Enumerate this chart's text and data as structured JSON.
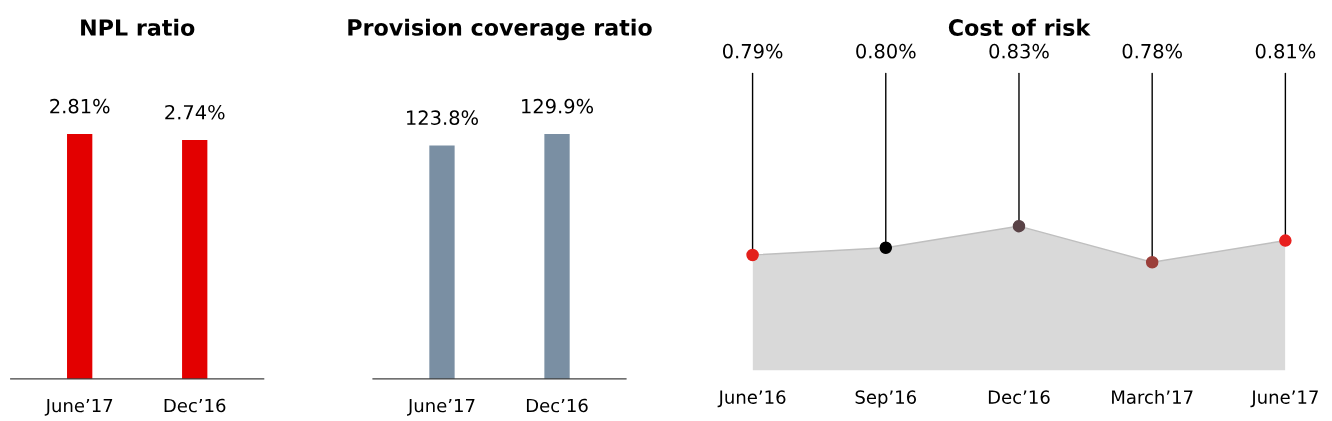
{
  "chart_data": [
    {
      "type": "bar",
      "title": "NPL ratio",
      "categories": [
        "June’17",
        "Dec’16"
      ],
      "values": [
        2.81,
        2.74
      ],
      "color": "#e30000",
      "tick_labels": "x",
      "data_labels": true,
      "value_labels": [
        "2.81%",
        "2.74%"
      ],
      "grid": false,
      "legend": false
    },
    {
      "type": "bar",
      "title": "Provision coverage ratio",
      "categories": [
        "June’17",
        "Dec’16"
      ],
      "values": [
        123.8,
        129.9
      ],
      "color": "#7a8fa3",
      "tick_labels": "x",
      "data_labels": true,
      "value_labels": [
        "123.8%",
        "129.9%"
      ],
      "grid": false,
      "legend": false
    },
    {
      "type": "area",
      "title": "Cost of risk",
      "categories": [
        "June’16",
        "Sep’16",
        "Dec’16",
        "March’17",
        "June’17"
      ],
      "tick_labels": "x",
      "marker": "circle",
      "data_labels": true,
      "grid": false,
      "legend": false,
      "series": [
        {
          "color": "#d9d9d9",
          "colors": [
            "#e3201b",
            "#000000",
            "#5a4347",
            "#9b3f3a",
            "#e8201e"
          ],
          "values": [
            0.79,
            0.8,
            0.83,
            0.78,
            0.81
          ],
          "value_labels": [
            "0.79%",
            "0.80%",
            "0.83%",
            "0.78%",
            "0.81%"
          ]
        }
      ]
    }
  ]
}
